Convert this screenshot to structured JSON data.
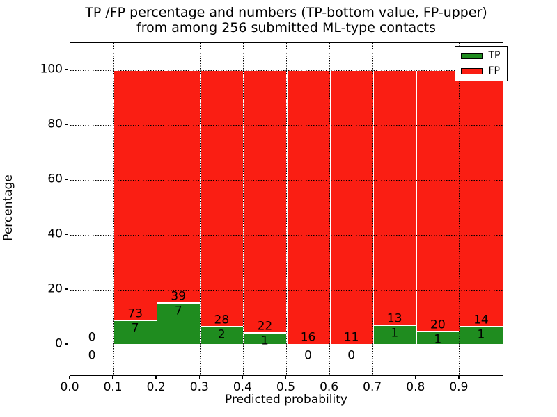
{
  "title": {
    "line1": "TP /FP percentage and numbers (TP-bottom value, FP-upper)",
    "line2": "from among 256 submitted ML-type contacts"
  },
  "axes": {
    "xlabel": "Predicted probability",
    "ylabel": "Percentage",
    "x_tick_labels": [
      "0.0",
      "0.1",
      "0.2",
      "0.3",
      "0.4",
      "0.5",
      "0.6",
      "0.7",
      "0.8",
      "0.9"
    ],
    "y_tick_labels": [
      "0",
      "20",
      "40",
      "60",
      "80",
      "100"
    ]
  },
  "legend": {
    "entries": [
      {
        "label": "TP",
        "color": "#1f8c1f"
      },
      {
        "label": "FP",
        "color": "#fa1e13"
      }
    ]
  },
  "chart_data": {
    "type": "bar",
    "stacked": true,
    "normalized": "each bin scaled so TP%+FP% = 100; numeric labels show raw counts (TP bottom, FP upper)",
    "title": "TP /FP percentage and numbers (TP-bottom value, FP-upper) from among 256 submitted ML-type contacts",
    "xlabel": "Predicted probability",
    "ylabel": "Percentage",
    "total_contacts": 256,
    "bin_edges": [
      0.0,
      0.1,
      0.2,
      0.3,
      0.4,
      0.5,
      0.6,
      0.7,
      0.8,
      0.9,
      1.0
    ],
    "series": [
      {
        "name": "TP",
        "color": "#1f8c1f",
        "counts": [
          0,
          7,
          7,
          2,
          1,
          0,
          0,
          1,
          1,
          1
        ]
      },
      {
        "name": "FP",
        "color": "#fa1e13",
        "counts": [
          0,
          73,
          39,
          28,
          22,
          16,
          11,
          13,
          20,
          14
        ]
      }
    ],
    "tp_percent_by_bin": [
      0,
      8.75,
      15.22,
      6.67,
      4.35,
      0,
      0,
      7.14,
      4.76,
      6.67
    ],
    "x_ticks": [
      0.0,
      0.1,
      0.2,
      0.3,
      0.4,
      0.5,
      0.6,
      0.7,
      0.8,
      0.9
    ],
    "y_ticks": [
      0,
      20,
      40,
      60,
      80,
      100
    ],
    "xlim": [
      0.0,
      1.0
    ],
    "ylim": [
      -11,
      110
    ],
    "grid": "dotted black, drawn above bars",
    "legend_position": "upper right"
  }
}
